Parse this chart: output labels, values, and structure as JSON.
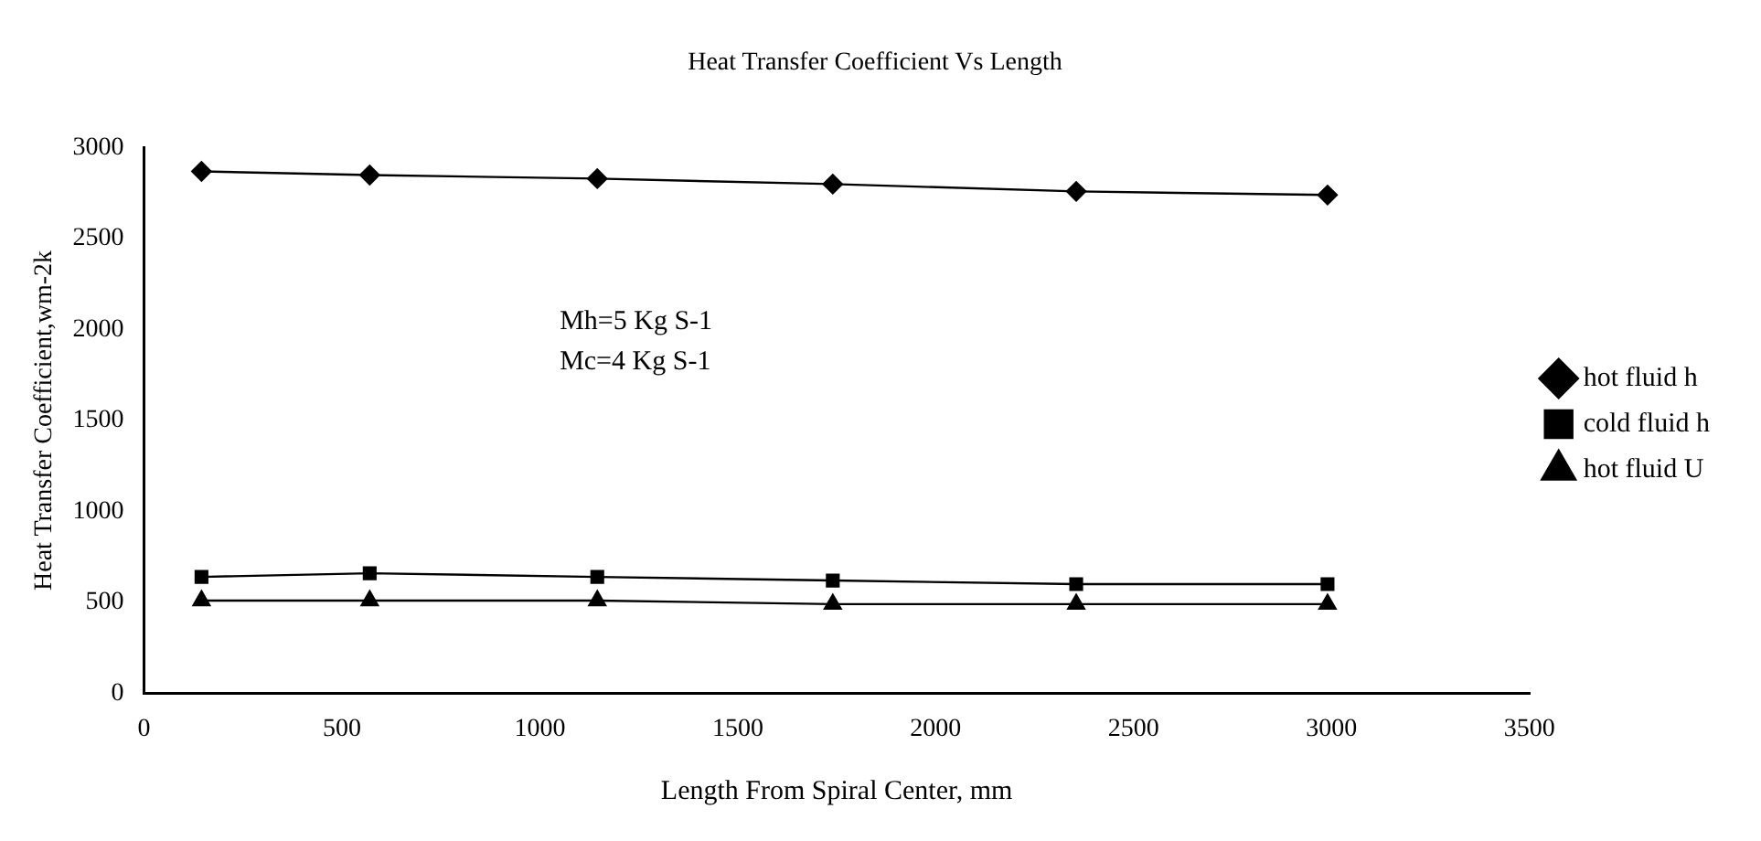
{
  "chart_data": {
    "type": "line",
    "title": "Heat Transfer Coefficient Vs Length",
    "xlabel": "Length From Spiral Center, mm",
    "ylabel": "Heat Transfer Coefficient,wm-2k",
    "x": [
      145,
      570,
      1145,
      1740,
      2355,
      2990
    ],
    "series": [
      {
        "name": "hot fluid h",
        "color": "#000000",
        "marker": "diamond",
        "values": [
          2870,
          2850,
          2830,
          2800,
          2760,
          2740
        ]
      },
      {
        "name": "cold fluid h",
        "color": "#000000",
        "marker": "square",
        "values": [
          640,
          660,
          640,
          620,
          600,
          600
        ]
      },
      {
        "name": "hot fluid U",
        "color": "#000000",
        "marker": "triangle",
        "values": [
          510,
          510,
          510,
          490,
          490,
          490
        ]
      }
    ],
    "xlim": [
      0,
      3500
    ],
    "xticks": [
      0,
      500,
      1000,
      1500,
      2000,
      2500,
      3000,
      3500
    ],
    "ylim": [
      0,
      3000
    ],
    "yticks": [
      0,
      500,
      1000,
      1500,
      2000,
      2500,
      3000
    ],
    "annotations": [
      "Mh=5 Kg S-1",
      "Mc=4 Kg S-1"
    ],
    "grid": false,
    "legend": "right",
    "line_style": "solid"
  }
}
